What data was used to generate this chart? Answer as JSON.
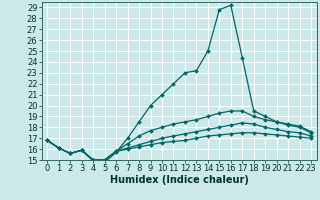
{
  "title": "",
  "xlabel": "Humidex (Indice chaleur)",
  "background_color": "#cce8e8",
  "grid_color": "#ffffff",
  "line_color": "#006666",
  "x_values": [
    0,
    1,
    2,
    3,
    4,
    5,
    6,
    7,
    8,
    9,
    10,
    11,
    12,
    13,
    14,
    15,
    16,
    17,
    18,
    19,
    20,
    21,
    22,
    23
  ],
  "series": [
    [
      16.8,
      16.1,
      15.6,
      15.9,
      14.9,
      14.8,
      15.7,
      17.0,
      18.5,
      20.0,
      21.0,
      22.0,
      23.0,
      23.2,
      25.0,
      28.8,
      29.2,
      24.4,
      19.5,
      19.0,
      18.5,
      18.2,
      18.0,
      17.5
    ],
    [
      16.8,
      16.1,
      15.6,
      15.9,
      15.0,
      15.0,
      15.8,
      16.5,
      17.2,
      17.7,
      18.0,
      18.3,
      18.5,
      18.7,
      19.0,
      19.3,
      19.5,
      19.5,
      19.0,
      18.7,
      18.5,
      18.3,
      18.1,
      17.6
    ],
    [
      16.8,
      16.1,
      15.6,
      15.9,
      15.0,
      15.0,
      15.8,
      16.1,
      16.4,
      16.7,
      17.0,
      17.2,
      17.4,
      17.6,
      17.8,
      18.0,
      18.2,
      18.4,
      18.3,
      18.0,
      17.8,
      17.6,
      17.5,
      17.2
    ],
    [
      16.8,
      16.1,
      15.6,
      15.9,
      15.0,
      15.0,
      15.8,
      16.0,
      16.2,
      16.4,
      16.6,
      16.7,
      16.8,
      17.0,
      17.2,
      17.3,
      17.4,
      17.5,
      17.5,
      17.4,
      17.3,
      17.2,
      17.1,
      17.0
    ]
  ],
  "ylim": [
    15,
    29.5
  ],
  "xlim": [
    -0.5,
    23.5
  ],
  "yticks": [
    15,
    16,
    17,
    18,
    19,
    20,
    21,
    22,
    23,
    24,
    25,
    26,
    27,
    28,
    29
  ],
  "xticks": [
    0,
    1,
    2,
    3,
    4,
    5,
    6,
    7,
    8,
    9,
    10,
    11,
    12,
    13,
    14,
    15,
    16,
    17,
    18,
    19,
    20,
    21,
    22,
    23
  ],
  "marker": "D",
  "marker_size": 2.0,
  "line_width": 0.9,
  "tick_font_size": 6,
  "xlabel_font_size": 7
}
